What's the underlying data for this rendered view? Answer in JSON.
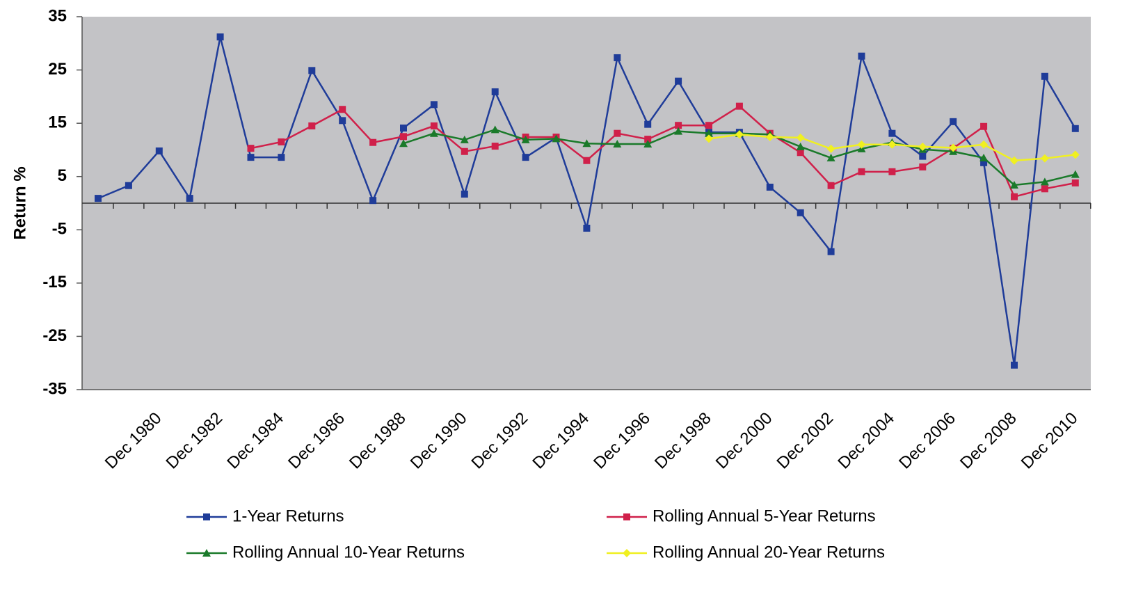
{
  "chart_data": {
    "type": "line",
    "y_label": "Return %",
    "categories": [
      null,
      null,
      "Dec 1980",
      null,
      "Dec 1982",
      null,
      "Dec 1984",
      null,
      "Dec 1986",
      null,
      "Dec 1988",
      null,
      "Dec 1990",
      null,
      "Dec 1992",
      null,
      "Dec 1994",
      null,
      "Dec 1996",
      null,
      "Dec 1998",
      null,
      "Dec 2000",
      null,
      "Dec 2002",
      null,
      "Dec 2004",
      null,
      "Dec 2006",
      null,
      "Dec 2008",
      null,
      "Dec 2010"
    ],
    "ylim": [
      -35,
      35
    ],
    "yticks": [
      -35,
      -25,
      -15,
      -5,
      5,
      15,
      25,
      35
    ],
    "series": [
      {
        "name": "1-Year Returns",
        "color": "#1f3c99",
        "marker": "square",
        "values": [
          0.9,
          3.3,
          9.8,
          0.9,
          31.2,
          8.6,
          8.6,
          24.9,
          15.5,
          0.5,
          14.1,
          18.5,
          1.7,
          20.9,
          8.6,
          12.3,
          -4.7,
          27.3,
          14.8,
          22.9,
          13.3,
          13.3,
          3.0,
          -1.8,
          -9.1,
          27.6,
          13.1,
          8.8,
          15.3,
          7.6,
          -30.4,
          23.8,
          14.0
        ]
      },
      {
        "name": "Rolling Annual 5-Year Returns",
        "color": "#d0204a",
        "marker": "square",
        "values": [
          null,
          null,
          null,
          null,
          null,
          10.3,
          11.5,
          14.5,
          17.6,
          11.4,
          12.5,
          14.5,
          9.7,
          10.7,
          12.4,
          12.4,
          8.0,
          13.1,
          12.0,
          14.6,
          14.6,
          18.2,
          13.1,
          9.5,
          3.3,
          5.9,
          5.9,
          6.8,
          10.3,
          14.4,
          1.2,
          2.7,
          3.8
        ]
      },
      {
        "name": "Rolling Annual 10-Year Returns",
        "color": "#1a7a2a",
        "marker": "triangle",
        "values": [
          null,
          null,
          null,
          null,
          null,
          null,
          null,
          null,
          null,
          null,
          11.2,
          13.1,
          11.9,
          13.8,
          11.9,
          12.1,
          11.2,
          11.1,
          11.1,
          13.5,
          13.1,
          13.1,
          12.9,
          10.6,
          8.5,
          10.2,
          11.4,
          10.1,
          9.7,
          8.5,
          3.4,
          4.0,
          5.4
        ]
      },
      {
        "name": "Rolling Annual 20-Year Returns",
        "color": "#f0f020",
        "marker": "diamond",
        "values": [
          null,
          null,
          null,
          null,
          null,
          null,
          null,
          null,
          null,
          null,
          null,
          null,
          null,
          null,
          null,
          null,
          null,
          null,
          null,
          null,
          12.1,
          12.9,
          12.4,
          12.3,
          10.2,
          11.0,
          11.0,
          10.6,
          10.4,
          11.0,
          8.0,
          8.4,
          9.1
        ]
      }
    ]
  }
}
